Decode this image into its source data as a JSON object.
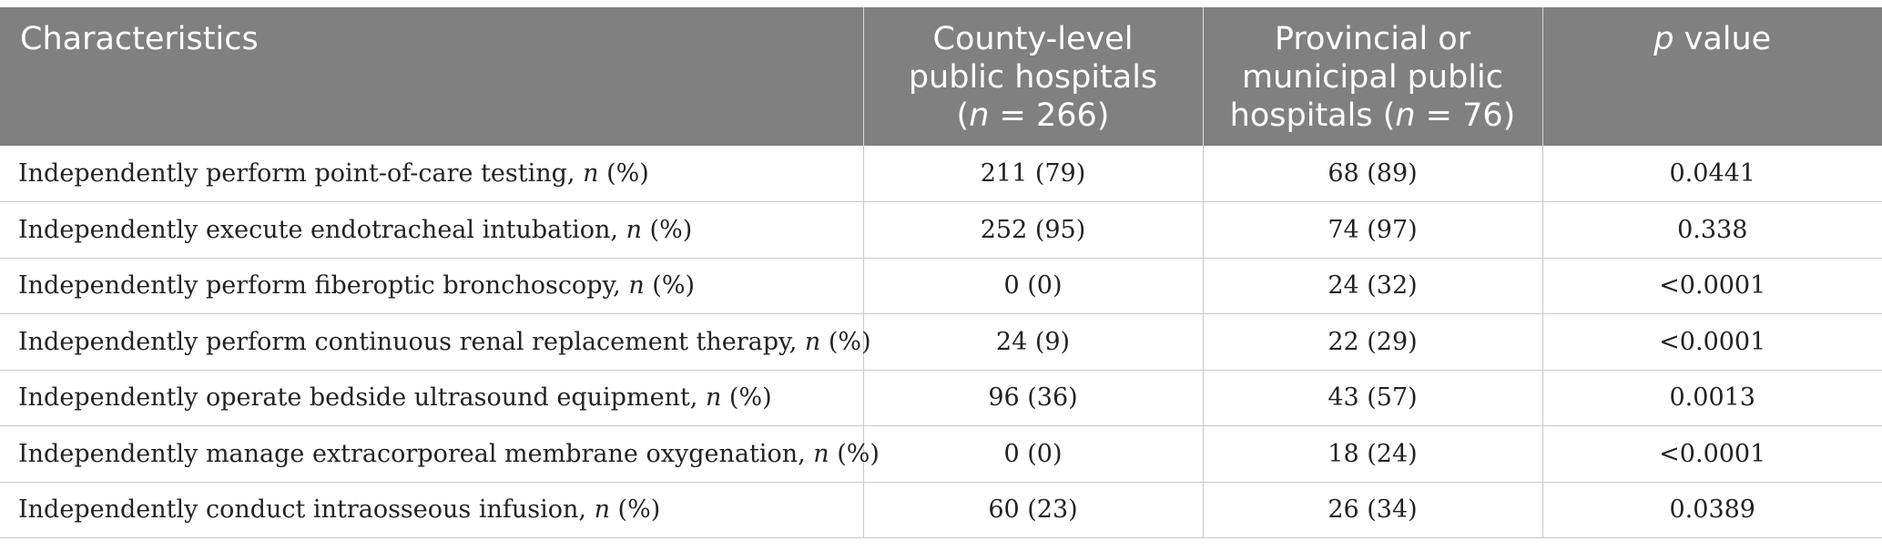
{
  "table": {
    "headers": [
      {
        "text": "Characteristics"
      },
      {
        "line1": "County-level",
        "line2": "public hospitals",
        "line3_open": "(",
        "line3_n": "n",
        "line3_rest": " = 266)"
      },
      {
        "line1": "Provincial or",
        "line2": "municipal public",
        "line3_pre": "hospitals (",
        "line3_n": "n",
        "line3_rest": " = 76)"
      },
      {
        "p": "p",
        "rest": " value"
      }
    ],
    "rows": [
      {
        "label": "Independently perform point-of-care testing, ",
        "n": "n",
        "pct": " (%)",
        "county": "211 (79)",
        "provincial": "68 (89)",
        "p_value": "0.0441"
      },
      {
        "label": "Independently execute endotracheal intubation, ",
        "n": "n",
        "pct": " (%)",
        "county": "252 (95)",
        "provincial": "74 (97)",
        "p_value": "0.338"
      },
      {
        "label": "Independently perform fiberoptic bronchoscopy, ",
        "n": "n",
        "pct": " (%)",
        "county": "0 (0)",
        "provincial": "24 (32)",
        "p_value": "<0.0001"
      },
      {
        "label": "Independently perform continuous renal replacement therapy, ",
        "n": "n",
        "pct": " (%)",
        "county": "24 (9)",
        "provincial": "22 (29)",
        "p_value": "<0.0001"
      },
      {
        "label": "Independently operate bedside ultrasound equipment, ",
        "n": "n",
        "pct": " (%)",
        "county": "96 (36)",
        "provincial": "43 (57)",
        "p_value": "0.0013"
      },
      {
        "label": "Independently manage extracorporeal membrane oxygenation, ",
        "n": "n",
        "pct": " (%)",
        "county": "0 (0)",
        "provincial": "18 (24)",
        "p_value": "<0.0001"
      },
      {
        "label": "Independently conduct intraosseous infusion, ",
        "n": "n",
        "pct": " (%)",
        "county": "60 (23)",
        "provincial": "26 (34)",
        "p_value": "0.0389"
      }
    ]
  }
}
